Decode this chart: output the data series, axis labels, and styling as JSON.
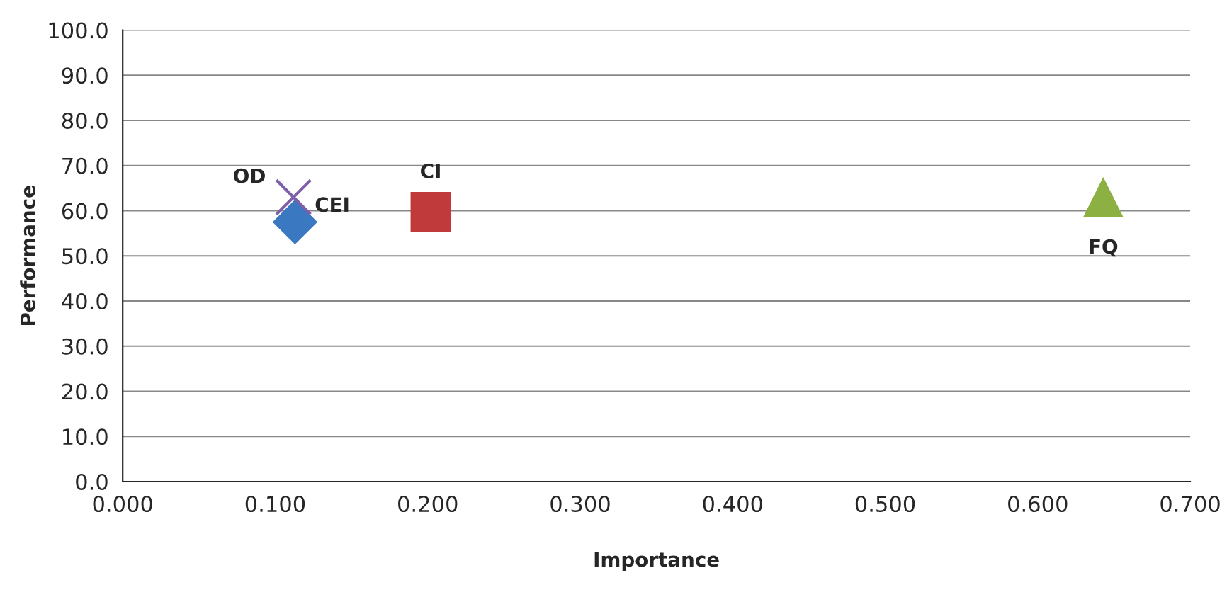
{
  "chart_data": {
    "type": "scatter",
    "xlabel": "Importance",
    "ylabel": "Performance",
    "xlim": [
      0,
      0.7
    ],
    "ylim": [
      0,
      100
    ],
    "xticks": [
      {
        "value": 0,
        "label": "0.000"
      },
      {
        "value": 0.1,
        "label": "0.100"
      },
      {
        "value": 0.2,
        "label": "0.200"
      },
      {
        "value": 0.3,
        "label": "0.300"
      },
      {
        "value": 0.4,
        "label": "0.400"
      },
      {
        "value": 0.5,
        "label": "0.500"
      },
      {
        "value": 0.6,
        "label": "0.600"
      },
      {
        "value": 0.7,
        "label": "0.700"
      }
    ],
    "yticks": [
      {
        "value": 0,
        "label": "0.0"
      },
      {
        "value": 10,
        "label": "10.0"
      },
      {
        "value": 20,
        "label": "20.0"
      },
      {
        "value": 30,
        "label": "30.0"
      },
      {
        "value": 40,
        "label": "40.0"
      },
      {
        "value": 50,
        "label": "50.0"
      },
      {
        "value": 60,
        "label": "60.0"
      },
      {
        "value": 70,
        "label": "70.0"
      },
      {
        "value": 80,
        "label": "80.0"
      },
      {
        "value": 90,
        "label": "90.0"
      },
      {
        "value": 100,
        "label": "100.0"
      }
    ],
    "grid": "y",
    "legend": false,
    "series": [
      {
        "name": "OD",
        "color": "#7f5fa8",
        "marker": "cross",
        "x": [
          0.112
        ],
        "values": [
          63
        ]
      },
      {
        "name": "CEI",
        "color": "#3a78c2",
        "marker": "diamond",
        "x": [
          0.113
        ],
        "values": [
          57.5
        ]
      },
      {
        "name": "CI",
        "color": "#c0393b",
        "marker": "square",
        "x": [
          0.202
        ],
        "values": [
          59.7
        ]
      },
      {
        "name": "FQ",
        "color": "#8cb041",
        "marker": "triangle",
        "x": [
          0.643
        ],
        "values": [
          63
        ]
      }
    ]
  }
}
